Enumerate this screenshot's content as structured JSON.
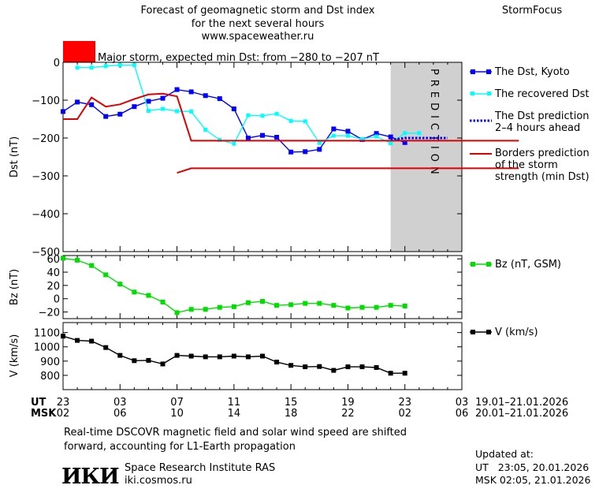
{
  "header": {
    "title_lines": [
      "Forecast of geomagnetic storm and Dst index",
      "for the next several hours",
      "www.spaceweather.ru"
    ],
    "brand": "StormFocus",
    "storm_text": "Major storm, expected min Dst: from −280 to −207 nT",
    "storm_color": "#ff0000"
  },
  "colors": {
    "dst": "#0000ff",
    "recovered": "#00ffff",
    "prediction": "#0000ff",
    "borders": "#dd0000",
    "bz": "#00dd00",
    "v": "#000000",
    "prediction_band": "#d0d0d0"
  },
  "prediction_label": "PREDICTION",
  "chart_data": [
    {
      "type": "line",
      "ylabel": "Dst (nT)",
      "ylim": [
        -500,
        0
      ],
      "yticks": [
        0,
        -100,
        -200,
        -300,
        -400,
        -500
      ],
      "yticklabels": [
        "0",
        "−100",
        "−200",
        "−300",
        "−400",
        "−500"
      ],
      "prediction_from_hour": 23,
      "series": [
        {
          "name": "The Dst, Kyoto",
          "x": [
            0,
            1,
            2,
            3,
            4,
            5,
            6,
            7,
            8,
            9,
            10,
            11,
            12,
            13,
            14,
            15,
            16,
            17,
            18,
            19,
            20,
            21,
            22,
            23,
            24
          ],
          "values": [
            -130,
            -105,
            -112,
            -143,
            -137,
            -117,
            -103,
            -95,
            -72,
            -78,
            -88,
            -96,
            -123,
            -200,
            -193,
            -198,
            -237,
            -236,
            -230,
            -176,
            -182,
            -204,
            -188,
            -197,
            -212
          ]
        },
        {
          "name": "The recovered Dst",
          "x": [
            1,
            2,
            3,
            4,
            5,
            6,
            7,
            8,
            9,
            10,
            11,
            12,
            13,
            14,
            15,
            16,
            17,
            18,
            19,
            20,
            21,
            22,
            23,
            24,
            25
          ],
          "values": [
            -14,
            -14,
            -10,
            -7,
            -7,
            -128,
            -123,
            -129,
            -130,
            -178,
            -205,
            -215,
            -140,
            -141,
            -136,
            -155,
            -156,
            -213,
            -194,
            -194,
            -203,
            -196,
            -214,
            -187,
            -187
          ]
        },
        {
          "name": "The Dst prediction\n2–4 hours ahead",
          "x": [
            23,
            24,
            25,
            26,
            27
          ],
          "values": [
            -205,
            -200,
            -200,
            -200,
            -200
          ]
        },
        {
          "name": "Borders prediction\nof the storm\nstrength (min Dst)",
          "segments": [
            {
              "x": [
                0,
                1,
                2,
                3,
                4,
                5,
                6,
                7,
                8,
                9,
                10,
                11,
                12,
                13,
                14,
                15,
                16,
                17,
                18,
                19,
                20,
                21,
                22,
                23,
                24,
                25,
                26,
                27,
                28,
                29,
                30,
                31,
                32
              ],
              "values": [
                -150,
                -150,
                -93,
                -117,
                -111,
                -97,
                -85,
                -83,
                -90,
                -207,
                -207,
                -207,
                -207,
                -207,
                -207,
                -207,
                -207,
                -207,
                -207,
                -207,
                -207,
                -207,
                -207,
                -207,
                -207,
                -207,
                -207,
                -207,
                -207,
                -207,
                -207,
                -207,
                -207
              ]
            },
            {
              "x": [
                8,
                9,
                10,
                11,
                12,
                13,
                14,
                15,
                16,
                17,
                18,
                19,
                20,
                21,
                22,
                23,
                24,
                25,
                26,
                27,
                28,
                29,
                30,
                31,
                32
              ],
              "values": [
                -292,
                -280,
                -280,
                -280,
                -280,
                -280,
                -280,
                -280,
                -280,
                -280,
                -280,
                -280,
                -280,
                -280,
                -280,
                -280,
                -280,
                -280,
                -280,
                -280,
                -280,
                -280,
                -280,
                -280,
                -280
              ]
            }
          ]
        }
      ]
    },
    {
      "type": "line",
      "ylabel": "Bz (nT)",
      "ylim": [
        -30,
        65
      ],
      "yticks": [
        60,
        40,
        20,
        0,
        -20
      ],
      "yticklabels": [
        "60",
        "40",
        "20",
        "0",
        "−20"
      ],
      "series": [
        {
          "name": "Bz (nT, GSM)",
          "x": [
            0,
            1,
            2,
            3,
            4,
            5,
            6,
            7,
            8,
            9,
            10,
            11,
            12,
            13,
            14,
            15,
            16,
            17,
            18,
            19,
            20,
            21,
            22,
            23,
            24
          ],
          "values": [
            61,
            58,
            50,
            36,
            22,
            10,
            5,
            -5,
            -21,
            -16,
            -16,
            -13,
            -12,
            -6,
            -4,
            -10,
            -9,
            -7,
            -7,
            -10,
            -14,
            -13,
            -13,
            -10,
            -11
          ]
        }
      ]
    },
    {
      "type": "line",
      "ylabel": "V (km/s)",
      "ylim": [
        700,
        1170
      ],
      "yticks": [
        1100,
        1000,
        900,
        800
      ],
      "yticklabels": [
        "1100",
        "1000",
        "900",
        "800"
      ],
      "series": [
        {
          "name": "V (km/s)",
          "x": [
            0,
            1,
            2,
            3,
            4,
            5,
            6,
            7,
            8,
            9,
            10,
            11,
            12,
            13,
            14,
            15,
            16,
            17,
            18,
            19,
            20,
            21,
            22,
            23,
            24
          ],
          "values": [
            1075,
            1045,
            1040,
            995,
            940,
            903,
            905,
            880,
            940,
            935,
            930,
            930,
            935,
            930,
            935,
            893,
            870,
            860,
            862,
            835,
            860,
            860,
            855,
            815,
            815
          ]
        }
      ]
    }
  ],
  "x_axis": {
    "hours_span": 28,
    "ut_label": "UT",
    "msk_label": "MSK",
    "ut_ticks": [
      "23",
      "03",
      "07",
      "11",
      "15",
      "19",
      "23",
      "03"
    ],
    "msk_ticks": [
      "02",
      "06",
      "10",
      "14",
      "18",
      "22",
      "02",
      "06"
    ],
    "ut_range": "19.01–21.01.2026",
    "msk_range": "20.01–21.01.2026"
  },
  "footer": {
    "note_line1": "Real-time DSCOVR magnetic field and solar wind speed are shifted",
    "note_line2": "forward, accounting for L1-Earth propagation",
    "institute": "Space Research Institute RAS",
    "site": "iki.cosmos.ru",
    "logo_text": "ИКИ",
    "updated_label": "Updated at:",
    "updated_ut": "UT   23:05, 20.01.2026",
    "updated_msk": "MSK 02:05, 21.01.2026"
  }
}
